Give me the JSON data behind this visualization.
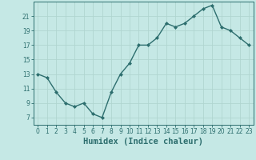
{
  "x": [
    0,
    1,
    2,
    3,
    4,
    5,
    6,
    7,
    8,
    9,
    10,
    11,
    12,
    13,
    14,
    15,
    16,
    17,
    18,
    19,
    20,
    21,
    22,
    23
  ],
  "y": [
    13,
    12.5,
    10.5,
    9,
    8.5,
    9,
    7.5,
    7,
    10.5,
    13,
    14.5,
    17,
    17,
    18,
    20,
    19.5,
    20,
    21,
    22,
    22.5,
    19.5,
    19,
    18,
    17
  ],
  "line_color": "#2d6e6e",
  "marker": "D",
  "marker_size": 2.0,
  "bg_color": "#c5e8e5",
  "grid_color": "#b0d5d0",
  "xlabel": "Humidex (Indice chaleur)",
  "xlabel_fontsize": 7.5,
  "ylabel_ticks": [
    7,
    9,
    11,
    13,
    15,
    17,
    19,
    21
  ],
  "ylim": [
    6.0,
    23.0
  ],
  "xlim": [
    -0.5,
    23.5
  ],
  "xticks": [
    0,
    1,
    2,
    3,
    4,
    5,
    6,
    7,
    8,
    9,
    10,
    11,
    12,
    13,
    14,
    15,
    16,
    17,
    18,
    19,
    20,
    21,
    22,
    23
  ],
  "tick_fontsize": 5.5,
  "line_width": 1.0
}
